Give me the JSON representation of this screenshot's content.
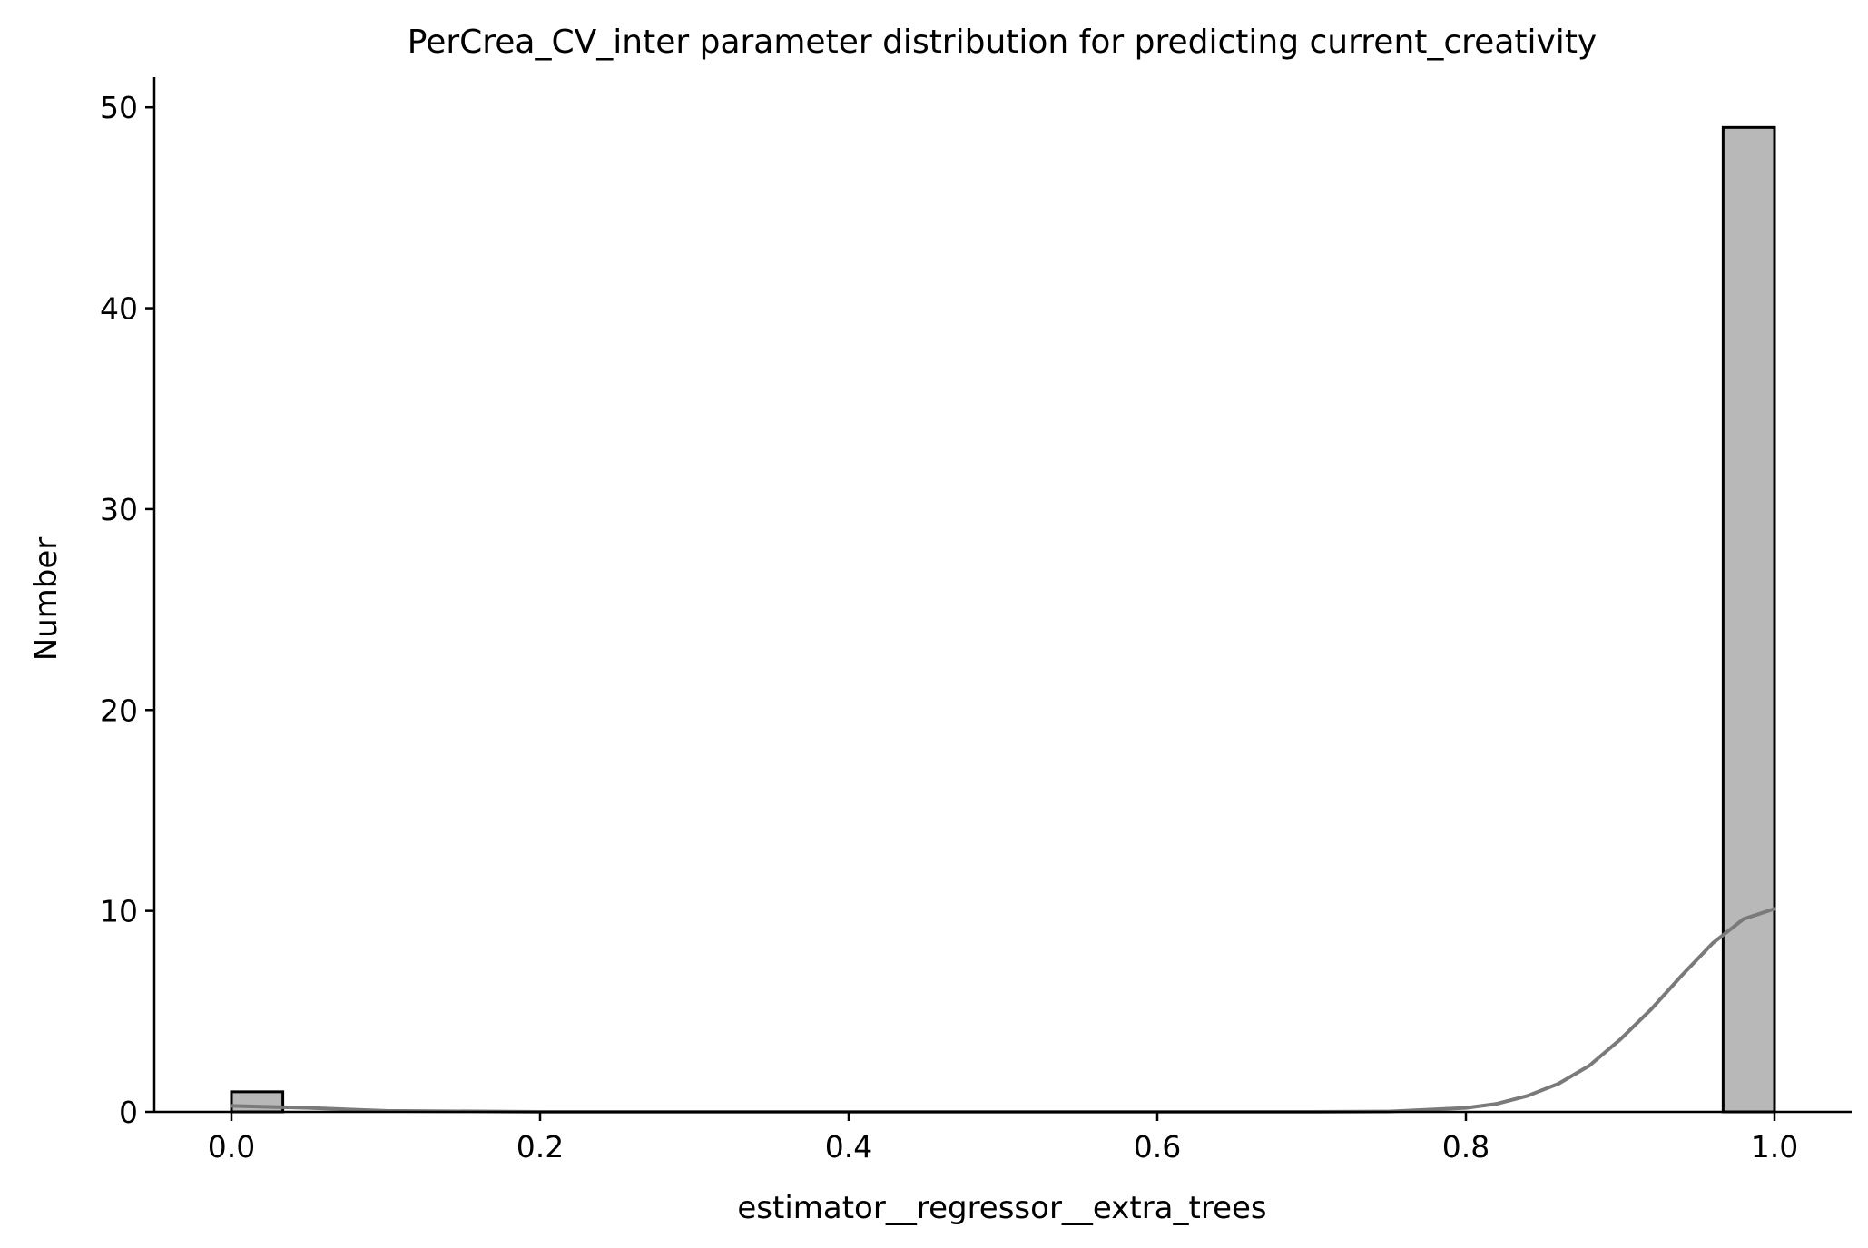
{
  "chart_data": {
    "type": "bar",
    "title": "PerCrea_CV_inter parameter distribution for predicting current_creativity",
    "xlabel": "estimator__regressor__extra_trees",
    "ylabel": "Number",
    "xlim": [
      -0.05,
      1.05
    ],
    "ylim": [
      0,
      51.5
    ],
    "xticks": [
      "0.0",
      "0.2",
      "0.4",
      "0.6",
      "0.8",
      "1.0"
    ],
    "yticks": [
      "0",
      "10",
      "20",
      "30",
      "40",
      "50"
    ],
    "bins": [
      {
        "x0": 0.0,
        "x1": 0.0333,
        "count": 1
      },
      {
        "x0": 0.9667,
        "x1": 1.0,
        "count": 49
      }
    ],
    "kde_curve": {
      "x": [
        0.0,
        0.05,
        0.1,
        0.2,
        0.3,
        0.4,
        0.5,
        0.6,
        0.7,
        0.75,
        0.8,
        0.82,
        0.84,
        0.86,
        0.88,
        0.9,
        0.92,
        0.94,
        0.96,
        0.98,
        1.0
      ],
      "y": [
        0.3,
        0.2,
        0.05,
        0.0,
        0.0,
        0.0,
        0.0,
        0.0,
        0.0,
        0.02,
        0.2,
        0.4,
        0.8,
        1.4,
        2.3,
        3.6,
        5.1,
        6.8,
        8.4,
        9.6,
        10.1
      ]
    },
    "grid": false,
    "colors": {
      "bar_fill": "#b8b8b8",
      "bar_edge": "#000000",
      "kde_line": "#7a7a7a",
      "axis": "#000000"
    }
  }
}
